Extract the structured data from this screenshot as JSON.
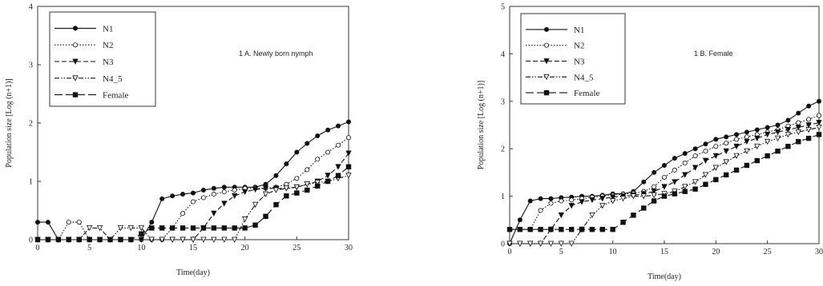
{
  "chart_data": [
    {
      "type": "line",
      "title": "1 A. Newly born nymph",
      "xlabel": "Time(day)",
      "ylabel": "Population size [Log (n+1)]",
      "xlim": [
        0,
        30
      ],
      "ylim": [
        0,
        4
      ],
      "xticks": [
        "0",
        "5",
        "10",
        "15",
        "20",
        "25",
        "30"
      ],
      "yticks": [
        "0",
        "1",
        "2",
        "3",
        "4"
      ],
      "legend_position": "top-left",
      "series": [
        {
          "name": "N1",
          "style": "solid",
          "marker": "filled-circle",
          "x": [
            0,
            1,
            2,
            3,
            4,
            5,
            6,
            7,
            8,
            9,
            10,
            11,
            12,
            13,
            14,
            15,
            16,
            17,
            18,
            19,
            20,
            21,
            22,
            23,
            24,
            25,
            26,
            27,
            28,
            29,
            30
          ],
          "y": [
            0.3,
            0.3,
            0,
            0,
            0,
            0,
            0,
            0,
            0,
            0,
            0,
            0.3,
            0.7,
            0.75,
            0.78,
            0.8,
            0.85,
            0.88,
            0.9,
            0.9,
            0.9,
            0.9,
            0.95,
            1.1,
            1.3,
            1.5,
            1.65,
            1.78,
            1.88,
            1.95,
            2.02
          ]
        },
        {
          "name": "N2",
          "style": "dotted",
          "marker": "open-circle",
          "x": [
            0,
            1,
            2,
            3,
            4,
            5,
            6,
            7,
            8,
            9,
            10,
            11,
            12,
            13,
            14,
            15,
            16,
            17,
            18,
            19,
            20,
            21,
            22,
            23,
            24,
            25,
            26,
            27,
            28,
            29,
            30
          ],
          "y": [
            0,
            0,
            0,
            0.3,
            0.3,
            0,
            0,
            0,
            0,
            0,
            0,
            0,
            0,
            0.2,
            0.45,
            0.65,
            0.72,
            0.78,
            0.82,
            0.85,
            0.88,
            0.88,
            0.88,
            0.9,
            0.95,
            1.05,
            1.2,
            1.38,
            1.5,
            1.62,
            1.75
          ]
        },
        {
          "name": "N3",
          "style": "dashed",
          "marker": "filled-triangle-down",
          "x": [
            0,
            1,
            2,
            3,
            4,
            5,
            6,
            7,
            8,
            9,
            10,
            11,
            12,
            13,
            14,
            15,
            16,
            17,
            18,
            19,
            20,
            21,
            22,
            23,
            24,
            25,
            26,
            27,
            28,
            29,
            30
          ],
          "y": [
            0,
            0,
            0,
            0,
            0,
            0,
            0,
            0,
            0,
            0,
            0,
            0,
            0,
            0,
            0,
            0,
            0.2,
            0.45,
            0.62,
            0.75,
            0.82,
            0.86,
            0.88,
            0.88,
            0.88,
            0.9,
            0.95,
            1.0,
            1.1,
            1.25,
            1.48
          ]
        },
        {
          "name": "N4_5",
          "style": "dash-dot",
          "marker": "open-triangle-down",
          "x": [
            0,
            1,
            2,
            3,
            4,
            5,
            6,
            7,
            8,
            9,
            10,
            11,
            12,
            13,
            14,
            15,
            16,
            17,
            18,
            19,
            20,
            21,
            22,
            23,
            24,
            25,
            26,
            27,
            28,
            29,
            30
          ],
          "y": [
            0,
            0,
            0,
            0,
            0,
            0.2,
            0.2,
            0,
            0.2,
            0.2,
            0.2,
            0,
            0,
            0,
            0,
            0,
            0,
            0,
            0,
            0,
            0.35,
            0.6,
            0.78,
            0.85,
            0.88,
            0.9,
            0.95,
            0.98,
            1.0,
            1.05,
            1.1
          ]
        },
        {
          "name": "Female",
          "style": "long-dash",
          "marker": "filled-square",
          "x": [
            0,
            1,
            2,
            3,
            4,
            5,
            6,
            7,
            8,
            9,
            10,
            11,
            12,
            13,
            14,
            15,
            16,
            17,
            18,
            19,
            20,
            21,
            22,
            23,
            24,
            25,
            26,
            27,
            28,
            29,
            30
          ],
          "y": [
            0,
            0,
            0,
            0,
            0,
            0,
            0,
            0,
            0,
            0,
            0.1,
            0.2,
            0.2,
            0.2,
            0.2,
            0.2,
            0.2,
            0.2,
            0.2,
            0.2,
            0.2,
            0.25,
            0.4,
            0.6,
            0.75,
            0.8,
            0.85,
            0.92,
            1.0,
            1.1,
            1.25
          ]
        }
      ]
    },
    {
      "type": "line",
      "title": "1 B. Female",
      "xlabel": "Time(day)",
      "ylabel": "Population size [Log (n+1)]",
      "xlim": [
        0,
        30
      ],
      "ylim": [
        0,
        5
      ],
      "xticks": [
        "0",
        "5",
        "10",
        "15",
        "20",
        "25",
        "30"
      ],
      "yticks": [
        "0",
        "1",
        "2",
        "3",
        "4",
        "5"
      ],
      "legend_position": "top-left",
      "series": [
        {
          "name": "N1",
          "style": "solid",
          "marker": "filled-circle",
          "x": [
            0,
            1,
            2,
            3,
            4,
            5,
            6,
            7,
            8,
            9,
            10,
            11,
            12,
            13,
            14,
            15,
            16,
            17,
            18,
            19,
            20,
            21,
            22,
            23,
            24,
            25,
            26,
            27,
            28,
            29,
            30
          ],
          "y": [
            0,
            0.5,
            0.9,
            0.95,
            0.95,
            0.97,
            0.98,
            1.0,
            1.0,
            1.02,
            1.05,
            1.05,
            1.1,
            1.3,
            1.5,
            1.65,
            1.8,
            1.9,
            2.0,
            2.1,
            2.2,
            2.25,
            2.3,
            2.35,
            2.4,
            2.45,
            2.5,
            2.6,
            2.75,
            2.9,
            3.0
          ]
        },
        {
          "name": "N2",
          "style": "dotted",
          "marker": "open-circle",
          "x": [
            0,
            1,
            2,
            3,
            4,
            5,
            6,
            7,
            8,
            9,
            10,
            11,
            12,
            13,
            14,
            15,
            16,
            17,
            18,
            19,
            20,
            21,
            22,
            23,
            24,
            25,
            26,
            27,
            28,
            29,
            30
          ],
          "y": [
            0.3,
            0.3,
            0.3,
            0.7,
            0.85,
            0.9,
            0.92,
            0.95,
            0.98,
            1.0,
            1.02,
            1.04,
            1.06,
            1.1,
            1.2,
            1.4,
            1.55,
            1.7,
            1.85,
            1.95,
            2.05,
            2.12,
            2.2,
            2.25,
            2.3,
            2.35,
            2.4,
            2.48,
            2.55,
            2.62,
            2.7
          ]
        },
        {
          "name": "N3",
          "style": "dashed",
          "marker": "filled-triangle-down",
          "x": [
            0,
            1,
            2,
            3,
            4,
            5,
            6,
            7,
            8,
            9,
            10,
            11,
            12,
            13,
            14,
            15,
            16,
            17,
            18,
            19,
            20,
            21,
            22,
            23,
            24,
            25,
            26,
            27,
            28,
            29,
            30
          ],
          "y": [
            0,
            0,
            0,
            0,
            0.3,
            0.6,
            0.8,
            0.88,
            0.92,
            0.95,
            0.98,
            1.0,
            1.02,
            1.05,
            1.1,
            1.2,
            1.3,
            1.45,
            1.6,
            1.75,
            1.85,
            1.95,
            2.05,
            2.15,
            2.22,
            2.3,
            2.35,
            2.4,
            2.45,
            2.5,
            2.55
          ]
        },
        {
          "name": "N4_5",
          "style": "dash-dot",
          "marker": "open-triangle-down",
          "x": [
            0,
            1,
            2,
            3,
            4,
            5,
            6,
            7,
            8,
            9,
            10,
            11,
            12,
            13,
            14,
            15,
            16,
            17,
            18,
            19,
            20,
            21,
            22,
            23,
            24,
            25,
            26,
            27,
            28,
            29,
            30
          ],
          "y": [
            0,
            0,
            0,
            0,
            0,
            0,
            0,
            0.3,
            0.6,
            0.8,
            0.9,
            0.95,
            1.0,
            1.0,
            1.02,
            1.05,
            1.1,
            1.2,
            1.3,
            1.45,
            1.6,
            1.72,
            1.85,
            1.95,
            2.05,
            2.15,
            2.22,
            2.3,
            2.35,
            2.4,
            2.45
          ]
        },
        {
          "name": "Female",
          "style": "long-dash",
          "marker": "filled-square",
          "x": [
            0,
            1,
            2,
            3,
            4,
            5,
            6,
            7,
            8,
            9,
            10,
            11,
            12,
            13,
            14,
            15,
            16,
            17,
            18,
            19,
            20,
            21,
            22,
            23,
            24,
            25,
            26,
            27,
            28,
            29,
            30
          ],
          "y": [
            0.3,
            0.3,
            0.3,
            0.3,
            0.3,
            0.3,
            0.3,
            0.3,
            0.3,
            0.3,
            0.3,
            0.45,
            0.6,
            0.75,
            0.9,
            1.0,
            1.05,
            1.1,
            1.15,
            1.25,
            1.35,
            1.45,
            1.55,
            1.65,
            1.75,
            1.85,
            1.95,
            2.05,
            2.15,
            2.22,
            2.3
          ]
        }
      ]
    }
  ]
}
